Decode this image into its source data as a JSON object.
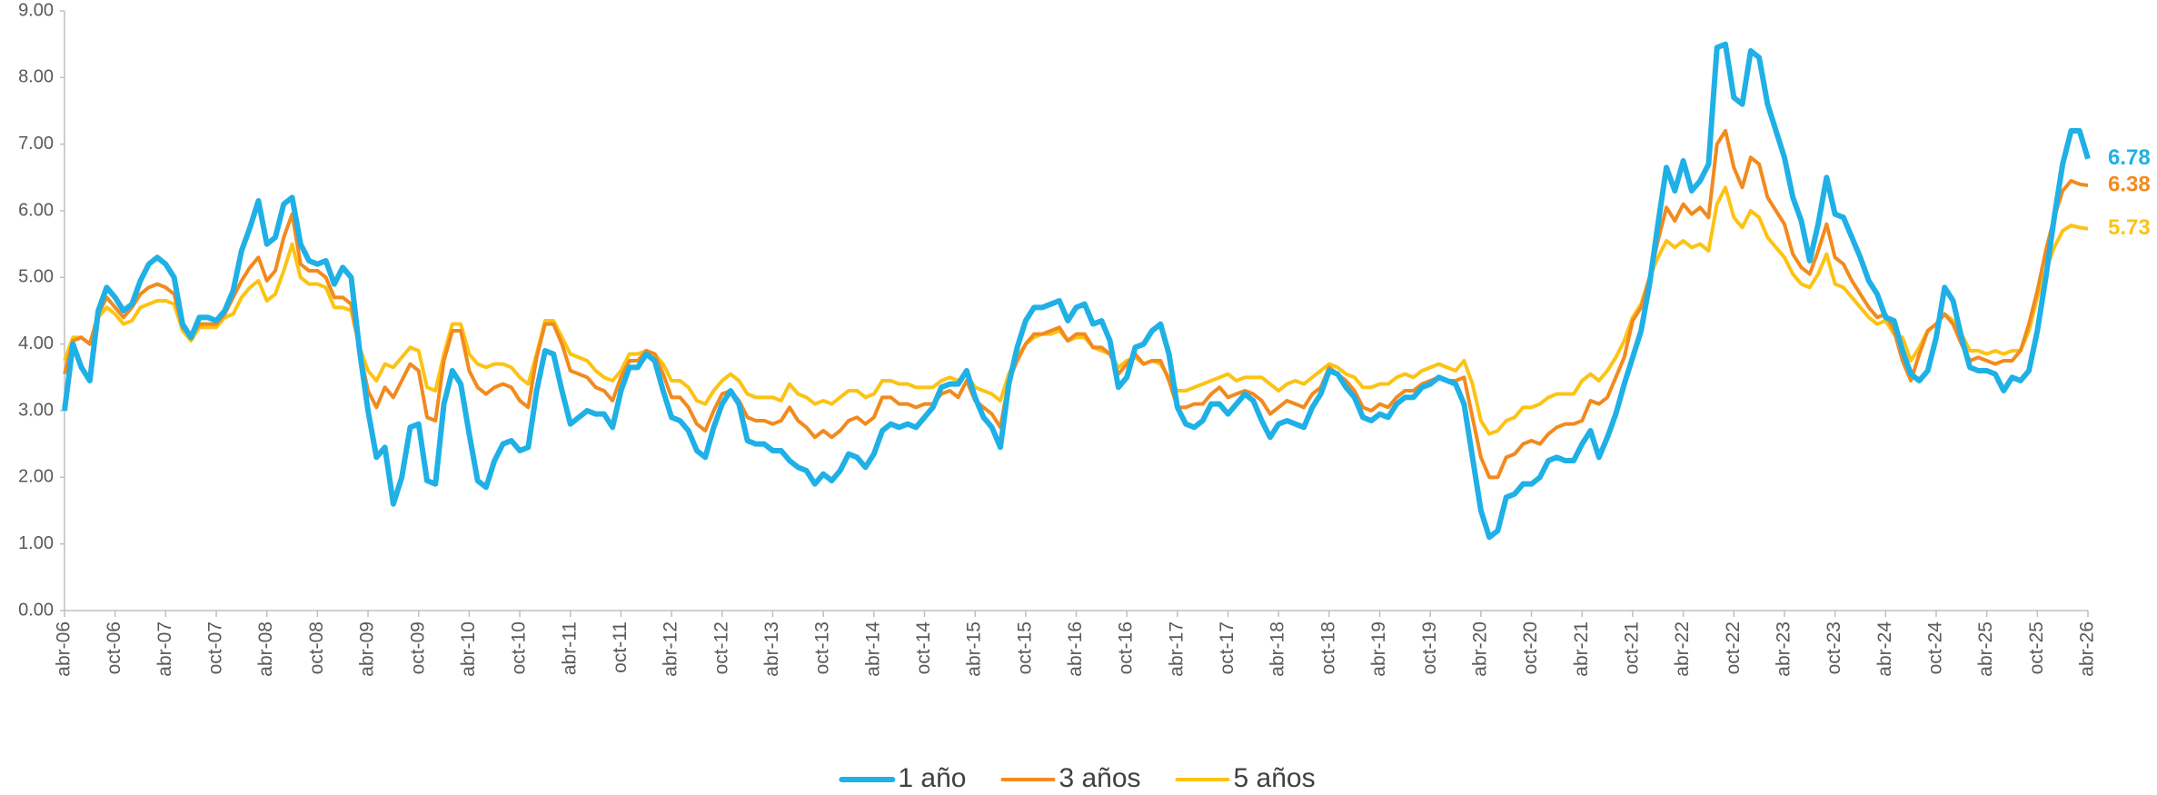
{
  "chart_data": {
    "type": "line",
    "categories": [
      "abr-06",
      null,
      null,
      null,
      null,
      null,
      "oct-06",
      null,
      null,
      null,
      null,
      null,
      "abr-07",
      null,
      null,
      null,
      null,
      null,
      "oct-07",
      null,
      null,
      null,
      null,
      null,
      "abr-08",
      null,
      null,
      null,
      null,
      null,
      "oct-08",
      null,
      null,
      null,
      null,
      null,
      "abr-09",
      null,
      null,
      null,
      null,
      null,
      "oct-09",
      null,
      null,
      null,
      null,
      null,
      "abr-10",
      null,
      null,
      null,
      null,
      null,
      "oct-10",
      null,
      null,
      null,
      null,
      null,
      "abr-11",
      null,
      null,
      null,
      null,
      null,
      "oct-11",
      null,
      null,
      null,
      null,
      null,
      "abr-12",
      null,
      null,
      null,
      null,
      null,
      "oct-12",
      null,
      null,
      null,
      null,
      null,
      "abr-13",
      null,
      null,
      null,
      null,
      null,
      "oct-13",
      null,
      null,
      null,
      null,
      null,
      "abr-14",
      null,
      null,
      null,
      null,
      null,
      "oct-14",
      null,
      null,
      null,
      null,
      null,
      "abr-15",
      null,
      null,
      null,
      null,
      null,
      "oct-15",
      null,
      null,
      null,
      null,
      null,
      "abr-16",
      null,
      null,
      null,
      null,
      null,
      "oct-16",
      null,
      null,
      null,
      null,
      null,
      "abr-17",
      null,
      null,
      null,
      null,
      null,
      "oct-17",
      null,
      null,
      null,
      null,
      null,
      "abr-18",
      null,
      null,
      null,
      null,
      null,
      "oct-18",
      null,
      null,
      null,
      null,
      null,
      "abr-19",
      null,
      null,
      null,
      null,
      null,
      "oct-19",
      null,
      null,
      null,
      null,
      null,
      "abr-20",
      null,
      null,
      null,
      null,
      null,
      "oct-20",
      null,
      null,
      null,
      null,
      null,
      "abr-21",
      null,
      null,
      null,
      null,
      null,
      "oct-21",
      null,
      null,
      null,
      null,
      null,
      "abr-22",
      null,
      null,
      null,
      null,
      null,
      "oct-22",
      null,
      null,
      null,
      null,
      null,
      "abr-23",
      null,
      null,
      null,
      null,
      null,
      "oct-23",
      null,
      null,
      null,
      null,
      null,
      "abr-24",
      null,
      null,
      null,
      null,
      null,
      "oct-24",
      null,
      null,
      null,
      null,
      null,
      "abr-25",
      null,
      null,
      null,
      null,
      null,
      "oct-25",
      null,
      null,
      null,
      null,
      null,
      "abr-26"
    ],
    "series": [
      {
        "name": "1 año",
        "color": "#1fb0e6",
        "width": 6,
        "values": [
          3.0,
          4.0,
          3.65,
          3.45,
          4.5,
          4.85,
          4.7,
          4.5,
          4.6,
          4.95,
          5.2,
          5.3,
          5.2,
          5.0,
          4.3,
          4.1,
          4.4,
          4.4,
          4.35,
          4.5,
          4.8,
          5.4,
          5.75,
          6.15,
          5.5,
          5.6,
          6.1,
          6.2,
          5.5,
          5.25,
          5.2,
          5.25,
          4.9,
          5.15,
          5.0,
          3.9,
          3.0,
          2.3,
          2.45,
          1.6,
          2.0,
          2.75,
          2.8,
          1.95,
          1.9,
          3.1,
          3.6,
          3.4,
          2.65,
          1.95,
          1.85,
          2.25,
          2.5,
          2.55,
          2.4,
          2.45,
          3.3,
          3.9,
          3.85,
          3.3,
          2.8,
          2.9,
          3.0,
          2.95,
          2.95,
          2.75,
          3.3,
          3.65,
          3.65,
          3.85,
          3.75,
          3.3,
          2.9,
          2.85,
          2.7,
          2.4,
          2.3,
          2.75,
          3.1,
          3.3,
          3.1,
          2.55,
          2.5,
          2.5,
          2.4,
          2.4,
          2.25,
          2.15,
          2.1,
          1.9,
          2.05,
          1.95,
          2.1,
          2.35,
          2.3,
          2.15,
          2.35,
          2.7,
          2.8,
          2.75,
          2.8,
          2.75,
          2.9,
          3.05,
          3.35,
          3.4,
          3.4,
          3.6,
          3.2,
          2.9,
          2.75,
          2.45,
          3.4,
          3.95,
          4.35,
          4.55,
          4.55,
          4.6,
          4.65,
          4.35,
          4.55,
          4.6,
          4.3,
          4.35,
          4.05,
          3.35,
          3.5,
          3.95,
          4.0,
          4.2,
          4.3,
          3.85,
          3.05,
          2.8,
          2.75,
          2.85,
          3.1,
          3.1,
          2.95,
          3.1,
          3.25,
          3.15,
          2.85,
          2.6,
          2.8,
          2.85,
          2.8,
          2.75,
          3.05,
          3.25,
          3.6,
          3.55,
          3.35,
          3.2,
          2.9,
          2.85,
          2.95,
          2.9,
          3.1,
          3.2,
          3.2,
          3.35,
          3.4,
          3.5,
          3.45,
          3.4,
          3.1,
          2.3,
          1.5,
          1.1,
          1.2,
          1.7,
          1.75,
          1.9,
          1.9,
          2.0,
          2.25,
          2.3,
          2.25,
          2.25,
          2.5,
          2.7,
          2.3,
          2.6,
          2.95,
          3.4,
          3.8,
          4.2,
          4.9,
          5.8,
          6.65,
          6.3,
          6.75,
          6.3,
          6.45,
          6.7,
          8.45,
          8.5,
          7.7,
          7.6,
          8.4,
          8.3,
          7.6,
          7.2,
          6.8,
          6.2,
          5.85,
          5.25,
          5.8,
          6.5,
          5.95,
          5.9,
          5.6,
          5.3,
          4.95,
          4.75,
          4.4,
          4.35,
          3.9,
          3.55,
          3.45,
          3.6,
          4.1,
          4.85,
          4.65,
          4.1,
          3.65,
          3.6,
          3.6,
          3.55,
          3.3,
          3.5,
          3.45,
          3.6,
          4.2,
          5.0,
          5.9,
          6.7,
          7.2,
          7.2,
          6.78
        ]
      },
      {
        "name": "3 años",
        "color": "#f28a1e",
        "width": 4,
        "values": [
          3.55,
          4.05,
          4.1,
          4.0,
          4.45,
          4.7,
          4.55,
          4.4,
          4.55,
          4.75,
          4.85,
          4.9,
          4.85,
          4.75,
          4.25,
          4.1,
          4.3,
          4.3,
          4.3,
          4.45,
          4.7,
          4.95,
          5.15,
          5.3,
          4.95,
          5.1,
          5.6,
          5.95,
          5.2,
          5.1,
          5.1,
          5.0,
          4.7,
          4.7,
          4.6,
          3.9,
          3.3,
          3.05,
          3.35,
          3.2,
          3.45,
          3.7,
          3.6,
          2.9,
          2.85,
          3.75,
          4.2,
          4.2,
          3.6,
          3.35,
          3.25,
          3.35,
          3.4,
          3.35,
          3.15,
          3.05,
          3.8,
          4.3,
          4.3,
          4.0,
          3.6,
          3.55,
          3.5,
          3.35,
          3.3,
          3.15,
          3.5,
          3.75,
          3.75,
          3.9,
          3.85,
          3.55,
          3.2,
          3.2,
          3.05,
          2.8,
          2.7,
          3.0,
          3.25,
          3.3,
          3.15,
          2.9,
          2.85,
          2.85,
          2.8,
          2.85,
          3.05,
          2.85,
          2.75,
          2.6,
          2.7,
          2.6,
          2.7,
          2.85,
          2.9,
          2.8,
          2.9,
          3.2,
          3.2,
          3.1,
          3.1,
          3.05,
          3.1,
          3.1,
          3.25,
          3.3,
          3.2,
          3.45,
          3.15,
          3.05,
          2.95,
          2.75,
          3.45,
          3.75,
          4.0,
          4.15,
          4.15,
          4.2,
          4.25,
          4.05,
          4.15,
          4.15,
          3.95,
          3.95,
          3.85,
          3.55,
          3.7,
          3.85,
          3.7,
          3.75,
          3.75,
          3.45,
          3.05,
          3.05,
          3.1,
          3.1,
          3.25,
          3.35,
          3.2,
          3.25,
          3.3,
          3.25,
          3.15,
          2.95,
          3.05,
          3.15,
          3.1,
          3.05,
          3.25,
          3.35,
          3.65,
          3.55,
          3.45,
          3.3,
          3.05,
          3.0,
          3.1,
          3.05,
          3.2,
          3.3,
          3.3,
          3.4,
          3.45,
          3.5,
          3.45,
          3.45,
          3.5,
          2.9,
          2.3,
          2.0,
          2.0,
          2.3,
          2.35,
          2.5,
          2.55,
          2.5,
          2.65,
          2.75,
          2.8,
          2.8,
          2.85,
          3.15,
          3.1,
          3.2,
          3.5,
          3.8,
          4.35,
          4.55,
          5.0,
          5.55,
          6.05,
          5.85,
          6.1,
          5.95,
          6.05,
          5.9,
          7.0,
          7.2,
          6.65,
          6.35,
          6.8,
          6.7,
          6.2,
          6.0,
          5.8,
          5.35,
          5.15,
          5.05,
          5.4,
          5.8,
          5.3,
          5.2,
          4.95,
          4.75,
          4.55,
          4.4,
          4.45,
          4.2,
          3.75,
          3.45,
          3.85,
          4.2,
          4.3,
          4.45,
          4.3,
          4.0,
          3.75,
          3.8,
          3.75,
          3.7,
          3.75,
          3.75,
          3.9,
          4.3,
          4.8,
          5.4,
          5.9,
          6.3,
          6.45,
          6.4,
          6.38
        ]
      },
      {
        "name": "5 años",
        "color": "#fcc314",
        "width": 4,
        "values": [
          3.75,
          4.1,
          4.1,
          4.0,
          4.4,
          4.55,
          4.45,
          4.3,
          4.35,
          4.55,
          4.6,
          4.65,
          4.65,
          4.6,
          4.2,
          4.05,
          4.25,
          4.25,
          4.25,
          4.4,
          4.45,
          4.7,
          4.85,
          4.95,
          4.65,
          4.75,
          5.1,
          5.5,
          5.0,
          4.9,
          4.9,
          4.85,
          4.55,
          4.55,
          4.5,
          3.95,
          3.6,
          3.45,
          3.7,
          3.65,
          3.8,
          3.95,
          3.9,
          3.35,
          3.3,
          3.85,
          4.3,
          4.3,
          3.85,
          3.7,
          3.65,
          3.7,
          3.7,
          3.65,
          3.5,
          3.4,
          3.85,
          4.35,
          4.35,
          4.1,
          3.85,
          3.8,
          3.75,
          3.6,
          3.5,
          3.45,
          3.6,
          3.85,
          3.85,
          3.9,
          3.85,
          3.7,
          3.45,
          3.45,
          3.35,
          3.15,
          3.1,
          3.3,
          3.45,
          3.55,
          3.45,
          3.25,
          3.2,
          3.2,
          3.2,
          3.15,
          3.4,
          3.25,
          3.2,
          3.1,
          3.15,
          3.1,
          3.2,
          3.3,
          3.3,
          3.2,
          3.25,
          3.45,
          3.45,
          3.4,
          3.4,
          3.35,
          3.35,
          3.35,
          3.45,
          3.5,
          3.45,
          3.55,
          3.35,
          3.3,
          3.25,
          3.15,
          3.55,
          3.8,
          4.0,
          4.1,
          4.15,
          4.15,
          4.2,
          4.05,
          4.1,
          4.1,
          3.95,
          3.9,
          3.85,
          3.65,
          3.75,
          3.8,
          3.7,
          3.75,
          3.7,
          3.5,
          3.3,
          3.3,
          3.35,
          3.4,
          3.45,
          3.5,
          3.55,
          3.45,
          3.5,
          3.5,
          3.5,
          3.4,
          3.3,
          3.4,
          3.45,
          3.4,
          3.5,
          3.6,
          3.7,
          3.65,
          3.55,
          3.5,
          3.35,
          3.35,
          3.4,
          3.4,
          3.5,
          3.55,
          3.5,
          3.6,
          3.65,
          3.7,
          3.65,
          3.6,
          3.75,
          3.4,
          2.85,
          2.65,
          2.7,
          2.85,
          2.9,
          3.05,
          3.05,
          3.1,
          3.2,
          3.25,
          3.25,
          3.25,
          3.45,
          3.55,
          3.45,
          3.6,
          3.8,
          4.05,
          4.4,
          4.6,
          5.0,
          5.3,
          5.55,
          5.45,
          5.55,
          5.45,
          5.5,
          5.4,
          6.1,
          6.35,
          5.9,
          5.75,
          6.0,
          5.9,
          5.6,
          5.45,
          5.3,
          5.05,
          4.9,
          4.85,
          5.05,
          5.35,
          4.9,
          4.85,
          4.7,
          4.55,
          4.4,
          4.3,
          4.35,
          4.15,
          4.1,
          3.75,
          3.95,
          4.2,
          4.3,
          4.45,
          4.35,
          4.15,
          3.9,
          3.9,
          3.85,
          3.9,
          3.85,
          3.9,
          3.9,
          4.2,
          4.7,
          5.1,
          5.45,
          5.7,
          5.78,
          5.75,
          5.73
        ]
      }
    ],
    "ylim": [
      0,
      9
    ],
    "yticks": [
      {
        "value": 0,
        "label": "0.00"
      },
      {
        "value": 1,
        "label": "1.00"
      },
      {
        "value": 2,
        "label": "2.00"
      },
      {
        "value": 3,
        "label": "3.00"
      },
      {
        "value": 4,
        "label": "4.00"
      },
      {
        "value": 5,
        "label": "5.00"
      },
      {
        "value": 6,
        "label": "6.00"
      },
      {
        "value": 7,
        "label": "7.00"
      },
      {
        "value": 8,
        "label": "8.00"
      },
      {
        "value": 9,
        "label": "9.00"
      }
    ],
    "grid": false,
    "legend": "bottom"
  }
}
